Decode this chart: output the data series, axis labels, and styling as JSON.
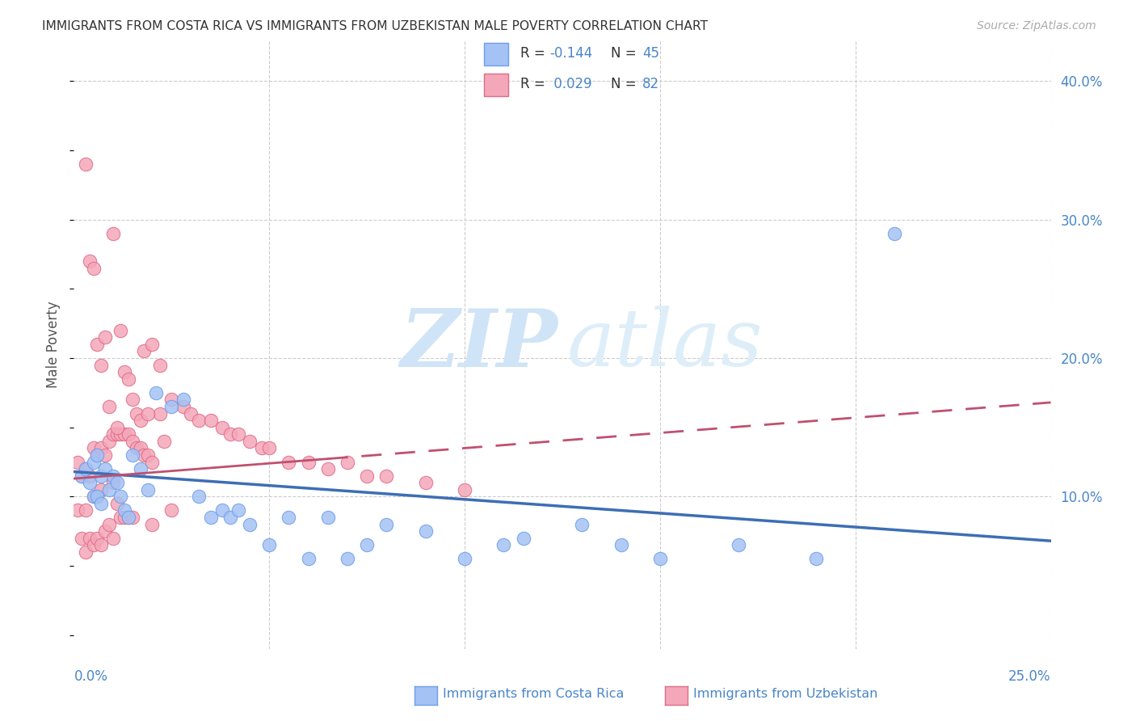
{
  "title": "IMMIGRANTS FROM COSTA RICA VS IMMIGRANTS FROM UZBEKISTAN MALE POVERTY CORRELATION CHART",
  "source": "Source: ZipAtlas.com",
  "ylabel": "Male Poverty",
  "xlim": [
    0.0,
    0.25
  ],
  "ylim": [
    -0.01,
    0.43
  ],
  "right_ytick_labels": [
    "40.0%",
    "30.0%",
    "20.0%",
    "10.0%"
  ],
  "right_ytick_vals": [
    0.4,
    0.3,
    0.2,
    0.1
  ],
  "vgrid_vals": [
    0.05,
    0.1,
    0.15,
    0.2,
    0.25
  ],
  "costa_rica_color": "#a4c2f4",
  "costa_rica_edge_color": "#6d9eeb",
  "uzbekistan_color": "#f4a7b9",
  "uzbekistan_edge_color": "#e06c88",
  "costa_rica_line_color": "#3d6eb5",
  "uzbekistan_line_color": "#c05070",
  "grid_color": "#cccccc",
  "right_axis_color": "#4a86c8",
  "bottom_axis_color": "#4a86c8",
  "title_color": "#333333",
  "legend_text_color": "#333333",
  "legend_num_color": "#4a86c8",
  "watermark_zip_color": "#d0e4f7",
  "watermark_atlas_color": "#deeef8",
  "cr_trend_start_y": 0.118,
  "cr_trend_end_y": 0.068,
  "uz_trend_start_y": 0.113,
  "uz_trend_end_y": 0.168,
  "cr_N": 45,
  "uz_N": 82,
  "cr_R": -0.144,
  "uz_R": 0.029,
  "costa_rica_x": [
    0.002,
    0.003,
    0.004,
    0.005,
    0.005,
    0.006,
    0.006,
    0.007,
    0.007,
    0.008,
    0.009,
    0.01,
    0.011,
    0.012,
    0.013,
    0.014,
    0.015,
    0.017,
    0.019,
    0.021,
    0.025,
    0.028,
    0.032,
    0.035,
    0.038,
    0.04,
    0.042,
    0.045,
    0.05,
    0.055,
    0.06,
    0.065,
    0.07,
    0.075,
    0.08,
    0.09,
    0.1,
    0.11,
    0.115,
    0.13,
    0.14,
    0.15,
    0.17,
    0.19,
    0.21
  ],
  "costa_rica_y": [
    0.115,
    0.12,
    0.11,
    0.125,
    0.1,
    0.13,
    0.1,
    0.115,
    0.095,
    0.12,
    0.105,
    0.115,
    0.11,
    0.1,
    0.09,
    0.085,
    0.13,
    0.12,
    0.105,
    0.175,
    0.165,
    0.17,
    0.1,
    0.085,
    0.09,
    0.085,
    0.09,
    0.08,
    0.065,
    0.085,
    0.055,
    0.085,
    0.055,
    0.065,
    0.08,
    0.075,
    0.055,
    0.065,
    0.07,
    0.08,
    0.065,
    0.055,
    0.065,
    0.055,
    0.29
  ],
  "uzbekistan_x": [
    0.001,
    0.001,
    0.002,
    0.002,
    0.003,
    0.003,
    0.003,
    0.004,
    0.004,
    0.005,
    0.005,
    0.005,
    0.006,
    0.006,
    0.006,
    0.007,
    0.007,
    0.007,
    0.008,
    0.008,
    0.009,
    0.009,
    0.01,
    0.01,
    0.01,
    0.011,
    0.011,
    0.012,
    0.012,
    0.013,
    0.013,
    0.014,
    0.014,
    0.015,
    0.015,
    0.016,
    0.017,
    0.018,
    0.019,
    0.02,
    0.02,
    0.022,
    0.023,
    0.025,
    0.025,
    0.028,
    0.03,
    0.032,
    0.035,
    0.038,
    0.04,
    0.042,
    0.045,
    0.048,
    0.05,
    0.055,
    0.06,
    0.065,
    0.07,
    0.075,
    0.08,
    0.09,
    0.1,
    0.003,
    0.004,
    0.005,
    0.006,
    0.007,
    0.008,
    0.009,
    0.01,
    0.011,
    0.012,
    0.013,
    0.014,
    0.015,
    0.016,
    0.017,
    0.018,
    0.019,
    0.02,
    0.022
  ],
  "uzbekistan_y": [
    0.125,
    0.09,
    0.115,
    0.07,
    0.12,
    0.09,
    0.06,
    0.115,
    0.07,
    0.135,
    0.1,
    0.065,
    0.13,
    0.1,
    0.07,
    0.135,
    0.105,
    0.065,
    0.13,
    0.075,
    0.14,
    0.08,
    0.145,
    0.11,
    0.07,
    0.145,
    0.095,
    0.145,
    0.085,
    0.145,
    0.085,
    0.145,
    0.085,
    0.14,
    0.085,
    0.135,
    0.135,
    0.13,
    0.13,
    0.125,
    0.08,
    0.16,
    0.14,
    0.17,
    0.09,
    0.165,
    0.16,
    0.155,
    0.155,
    0.15,
    0.145,
    0.145,
    0.14,
    0.135,
    0.135,
    0.125,
    0.125,
    0.12,
    0.125,
    0.115,
    0.115,
    0.11,
    0.105,
    0.34,
    0.27,
    0.265,
    0.21,
    0.195,
    0.215,
    0.165,
    0.29,
    0.15,
    0.22,
    0.19,
    0.185,
    0.17,
    0.16,
    0.155,
    0.205,
    0.16,
    0.21,
    0.195
  ]
}
